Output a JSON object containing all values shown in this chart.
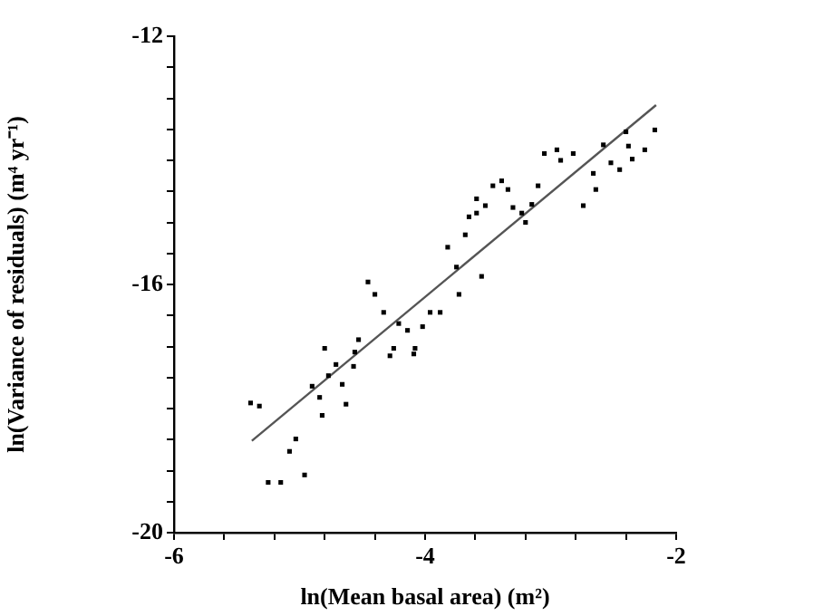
{
  "chart_data": {
    "type": "scatter",
    "xlabel": "ln(Mean basal area) (m²)",
    "ylabel": "ln(Variance of residuals) (m⁴ yr⁻¹)",
    "xlim": [
      -6,
      -2
    ],
    "ylim": [
      -20,
      -12
    ],
    "xticks": [
      -6,
      {
        "value": -5.6,
        "label": null
      },
      {
        "value": -5.2,
        "label": null
      },
      {
        "value": -4.8,
        "label": null
      },
      {
        "value": -4.4,
        "label": null
      },
      -4,
      {
        "value": -3.6,
        "label": null
      },
      {
        "value": -3.2,
        "label": null
      },
      {
        "value": -2.8,
        "label": null
      },
      {
        "value": -2.4,
        "label": null
      },
      -2
    ],
    "yticks": [
      -20,
      {
        "value": -19.5,
        "label": null
      },
      {
        "value": -19,
        "label": null
      },
      {
        "value": -18.5,
        "label": null
      },
      {
        "value": -18,
        "label": null
      },
      {
        "value": -17.5,
        "label": null
      },
      {
        "value": -17,
        "label": null
      },
      {
        "value": -16.5,
        "label": null
      },
      -16,
      {
        "value": -15.5,
        "label": null
      },
      {
        "value": -15,
        "label": null
      },
      {
        "value": -14.5,
        "label": null
      },
      {
        "value": -14,
        "label": null
      },
      {
        "value": -13.5,
        "label": null
      },
      {
        "value": -13,
        "label": null
      },
      {
        "value": -12.5,
        "label": null
      },
      -12
    ],
    "grid": false,
    "legend": false,
    "marker": "square",
    "series": [
      {
        "color": "#000000",
        "x": [
          -5.39,
          -5.32,
          -5.25,
          -5.15,
          -4.96,
          -5.08,
          -5.03,
          -4.9,
          -4.84,
          -4.82,
          -4.8,
          -4.77,
          -4.71,
          -4.66,
          -4.63,
          -4.57,
          -4.56,
          -4.53,
          -4.455,
          -4.4,
          -4.33,
          -4.28,
          -4.25,
          -4.21,
          -4.14,
          -4.08,
          -4.09,
          -4.02,
          -3.96,
          -3.88,
          -3.73,
          -3.82,
          -3.75,
          -3.68,
          -3.65,
          -3.59,
          -3.59,
          -3.52,
          -3.46,
          -3.39,
          -3.34,
          -3.55,
          -3.3,
          -3.23,
          -3.2,
          -3.15,
          -3.1,
          -3.05,
          -2.95,
          -2.92,
          -2.82,
          -2.74,
          -2.66,
          -2.64,
          -2.58,
          -2.52,
          -2.45,
          -2.4,
          -2.38,
          -2.35,
          -2.25,
          -2.17
        ],
        "values": [
          -17.91,
          -17.96,
          -19.19,
          -19.19,
          -19.07,
          -18.69,
          -18.49,
          -17.64,
          -17.82,
          -18.11,
          -17.03,
          -17.47,
          -17.29,
          -17.61,
          -17.93,
          -17.32,
          -17.09,
          -16.89,
          -15.96,
          -16.16,
          -16.45,
          -17.15,
          -17.03,
          -16.63,
          -16.74,
          -17.03,
          -17.12,
          -16.68,
          -16.45,
          -16.45,
          -16.16,
          -15.4,
          -15.72,
          -15.2,
          -14.91,
          -14.85,
          -14.62,
          -14.73,
          -14.41,
          -14.33,
          -14.47,
          -15.87,
          -14.76,
          -14.85,
          -15.0,
          -14.71,
          -14.41,
          -13.89,
          -13.83,
          -14.0,
          -13.89,
          -14.73,
          -14.21,
          -14.47,
          -13.75,
          -14.04,
          -14.15,
          -13.54,
          -13.77,
          -13.98,
          -13.83,
          -13.51
        ]
      },
      {
        "type": "line",
        "color": "#555555",
        "marker": "none",
        "x": [
          -5.38,
          -2.16
        ],
        "values": [
          -18.52,
          -13.11
        ]
      }
    ]
  }
}
